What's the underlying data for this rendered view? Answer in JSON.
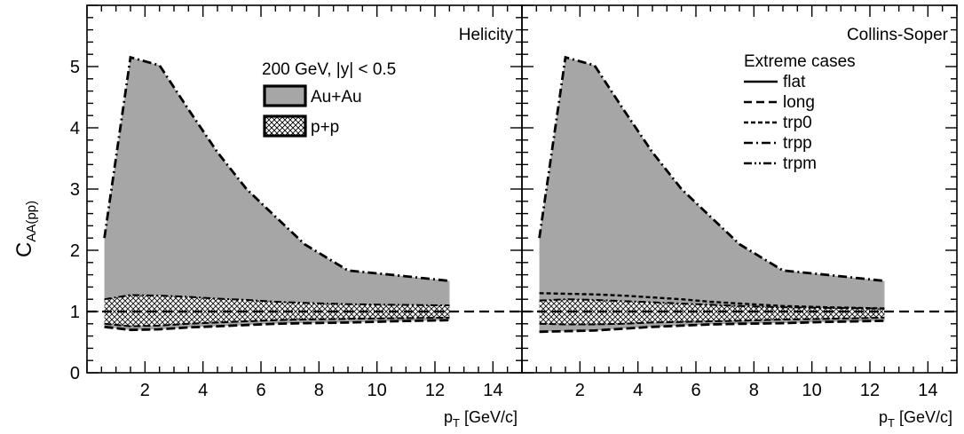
{
  "chart_data": [
    {
      "type": "area",
      "panel_label": "Helicity",
      "xlabel": "p_T [GeV/c]",
      "ylabel": "C_AA(pp)",
      "xlim": [
        0,
        15
      ],
      "ylim": [
        0,
        6
      ],
      "xticks": [
        2,
        4,
        6,
        8,
        10,
        12,
        14
      ],
      "yticks": [
        0,
        1,
        2,
        3,
        4,
        5
      ],
      "reference_line": {
        "y": 1,
        "style": "dashed"
      },
      "legend": {
        "title": "200 GeV, |y| < 0.5",
        "position": "top-center",
        "entries": [
          {
            "name": "Au+Au",
            "style": "solid-gray-fill"
          },
          {
            "name": "p+p",
            "style": "crosshatch-fill"
          }
        ]
      },
      "series": [
        {
          "name": "Au+Au",
          "x": [
            0.6,
            1.5,
            2.5,
            3.5,
            4.5,
            5.5,
            6.5,
            7.5,
            9.0,
            10.5,
            12.5
          ],
          "upper": [
            2.2,
            5.15,
            5.02,
            4.3,
            3.6,
            3.0,
            2.55,
            2.1,
            1.67,
            1.6,
            1.5
          ],
          "lower": [
            0.75,
            0.7,
            0.71,
            0.74,
            0.76,
            0.78,
            0.8,
            0.81,
            0.82,
            0.84,
            0.86
          ]
        },
        {
          "name": "p+p",
          "x": [
            0.6,
            1.5,
            2.5,
            3.5,
            4.5,
            5.5,
            6.5,
            7.5,
            9.0,
            10.5,
            12.5
          ],
          "upper": [
            1.2,
            1.27,
            1.26,
            1.24,
            1.21,
            1.19,
            1.16,
            1.14,
            1.12,
            1.11,
            1.1
          ],
          "lower": [
            0.8,
            0.76,
            0.77,
            0.8,
            0.82,
            0.84,
            0.86,
            0.87,
            0.88,
            0.89,
            0.9
          ]
        }
      ]
    },
    {
      "type": "area",
      "panel_label": "Collins-Soper",
      "xlabel": "p_T [GeV/c]",
      "ylabel": "C_AA(pp)",
      "xlim": [
        0,
        15
      ],
      "ylim": [
        0,
        6
      ],
      "xticks": [
        2,
        4,
        6,
        8,
        10,
        12,
        14
      ],
      "yticks": [
        0,
        1,
        2,
        3,
        4,
        5
      ],
      "reference_line": {
        "y": 1,
        "style": "dashed"
      },
      "legend": {
        "title": "Extreme cases",
        "position": "top-right",
        "entries": [
          {
            "name": "flat",
            "style": "solid"
          },
          {
            "name": "long",
            "style": "dashed"
          },
          {
            "name": "trp0",
            "style": "short-dashed"
          },
          {
            "name": "trpp",
            "style": "dash-dot"
          },
          {
            "name": "trpm",
            "style": "dash-dot-dot"
          }
        ]
      },
      "series": [
        {
          "name": "Au+Au",
          "x": [
            0.6,
            1.5,
            2.5,
            3.5,
            4.5,
            5.5,
            6.5,
            7.5,
            9.0,
            10.5,
            12.5
          ],
          "upper": [
            2.2,
            5.15,
            5.02,
            4.3,
            3.6,
            3.0,
            2.55,
            2.1,
            1.67,
            1.6,
            1.5
          ],
          "lower": [
            0.67,
            0.68,
            0.69,
            0.72,
            0.75,
            0.77,
            0.79,
            0.8,
            0.81,
            0.83,
            0.85
          ]
        },
        {
          "name": "p+p",
          "x": [
            0.6,
            1.5,
            2.5,
            3.5,
            4.5,
            5.5,
            6.5,
            7.5,
            9.0,
            10.5,
            12.5
          ],
          "upper": [
            1.18,
            1.2,
            1.19,
            1.17,
            1.15,
            1.13,
            1.11,
            1.09,
            1.07,
            1.06,
            1.05
          ],
          "lower": [
            0.8,
            0.79,
            0.79,
            0.8,
            0.82,
            0.83,
            0.84,
            0.85,
            0.87,
            0.88,
            0.9
          ]
        },
        {
          "name": "trp0",
          "x": [
            0.6,
            1.5,
            2.5,
            3.5,
            4.5,
            5.5,
            6.5,
            7.5,
            9.0,
            10.5,
            12.5
          ],
          "y": [
            1.3,
            1.29,
            1.28,
            1.26,
            1.23,
            1.2,
            1.16,
            1.13,
            1.09,
            1.07,
            1.05
          ]
        }
      ]
    }
  ]
}
